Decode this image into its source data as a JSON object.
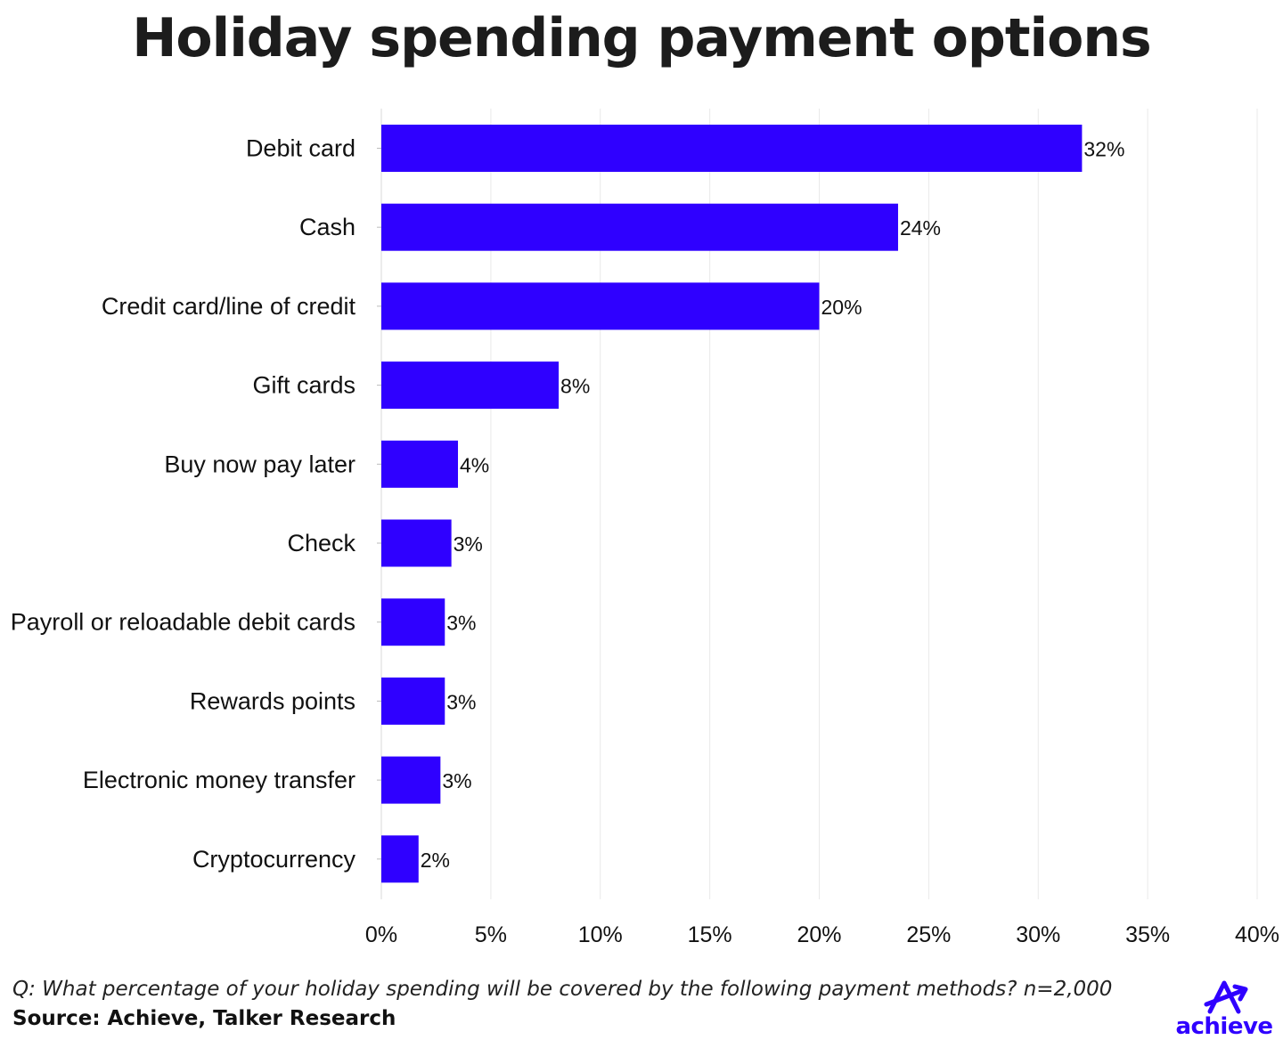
{
  "title": "Holiday spending payment options",
  "question": "Q: What percentage of your holiday spending will be covered by the following payment methods? n=2,000",
  "source": "Source: Achieve, Talker Research",
  "logo": {
    "text": "achieve",
    "icon": "achieve-arrow-icon"
  },
  "colors": {
    "bar": "#2f00ff",
    "grid": "#e9e9e9",
    "title": "#1c1c1c",
    "logo": "#2f00ff"
  },
  "chart_data": {
    "type": "bar",
    "orientation": "horizontal",
    "categories": [
      "Debit card",
      "Cash",
      "Credit card/line of credit",
      "Gift cards",
      "Buy now pay later",
      "Check",
      "Payroll or reloadable debit cards",
      "Rewards points",
      "Electronic money transfer",
      "Cryptocurrency"
    ],
    "values": [
      32,
      23.6,
      20,
      8.1,
      3.5,
      3.2,
      2.9,
      2.9,
      2.7,
      1.7
    ],
    "value_labels": [
      "32%",
      "24%",
      "20%",
      "8%",
      "4%",
      "3%",
      "3%",
      "3%",
      "3%",
      "2%"
    ],
    "x_ticks": [
      "0%",
      "5%",
      "10%",
      "15%",
      "20%",
      "25%",
      "30%",
      "35%",
      "40%"
    ],
    "xlim": [
      0,
      40
    ],
    "grid": true,
    "legend": "none"
  }
}
